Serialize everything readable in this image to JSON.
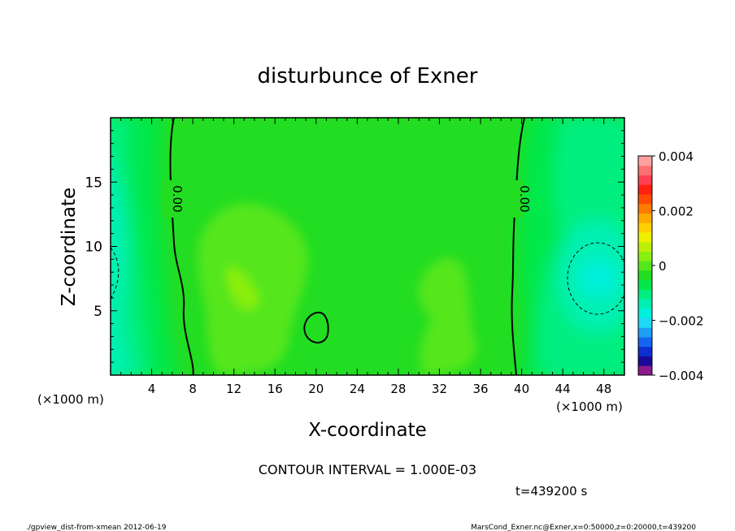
{
  "chart_data": {
    "type": "heatmap",
    "title": "disturbunce of Exner",
    "xlabel": "X-coordinate",
    "ylabel": "Z-coordinate",
    "x_unit_left": "(×1000 m)",
    "x_unit_right": "(×1000 m)",
    "xlim": [
      0,
      50
    ],
    "ylim": [
      0,
      20
    ],
    "x_ticks": [
      4,
      8,
      12,
      16,
      20,
      24,
      28,
      32,
      36,
      40,
      44,
      48
    ],
    "y_ticks": [
      5,
      10,
      15
    ],
    "x_tick_labels": [
      "4",
      "8",
      "12",
      "16",
      "20",
      "24",
      "28",
      "32",
      "36",
      "40",
      "44",
      "48"
    ],
    "y_tick_labels": [
      "5",
      "10",
      "15"
    ],
    "colorbar": {
      "min": -0.004,
      "max": 0.004,
      "ticks": [
        0.004,
        0.002,
        0,
        -0.002,
        -0.004
      ],
      "tick_labels": [
        "0.004",
        "0.002",
        "0",
        "−0.002",
        "−0.004"
      ],
      "colors": [
        "#8b1a8b",
        "#1a0a9a",
        "#0d2ed0",
        "#1466f0",
        "#1f9ef6",
        "#1fd8f6",
        "#00f0e0",
        "#00f0b4",
        "#00ee80",
        "#00e84c",
        "#22dd22",
        "#55e61a",
        "#8aee10",
        "#bdf008",
        "#eef000",
        "#ffd000",
        "#ffaa00",
        "#ff7a00",
        "#ff4a00",
        "#ff2010",
        "#ff4050",
        "#ff7070",
        "#ffa0a0"
      ]
    },
    "contour_labels": [
      "0.00",
      "0.00"
    ],
    "contour_interval_text": "CONTOUR INTERVAL = 1.000E-03",
    "time_text": "t=439200 s",
    "footer_left": "./gpview_dist-from-xmean  2012-06-19",
    "footer_right": "MarsCond_Exner.nc@Exner,x=0:50000,z=0:20000,t=439200"
  }
}
